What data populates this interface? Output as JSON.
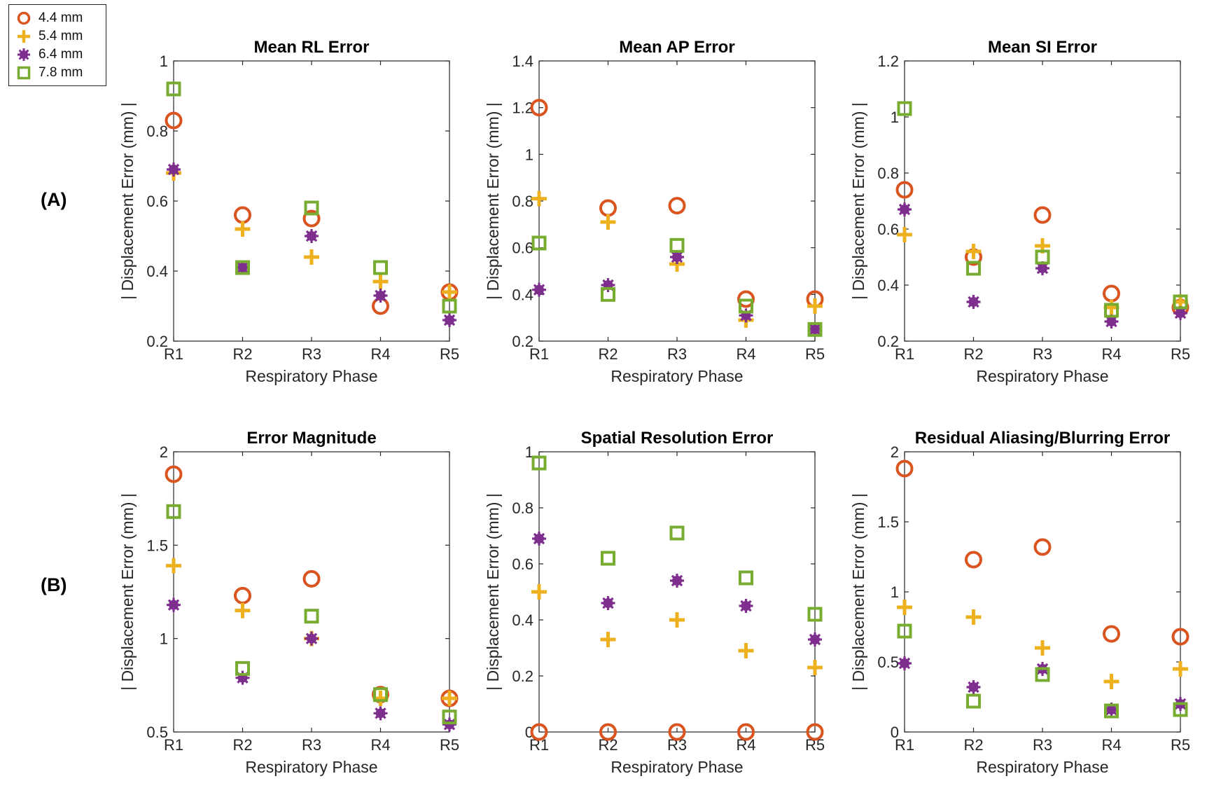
{
  "row_labels": [
    "(A)",
    "(B)"
  ],
  "legend": [
    {
      "label": "4.4 mm",
      "marker": "circle",
      "color": "#D9541E"
    },
    {
      "label": "5.4 mm",
      "marker": "plus",
      "color": "#EDB120"
    },
    {
      "label": "6.4 mm",
      "marker": "star",
      "color": "#7E2F8E"
    },
    {
      "label": "7.8 mm",
      "marker": "square",
      "color": "#77AC30"
    }
  ],
  "chart_data": [
    {
      "type": "scatter",
      "title": "Mean RL Error",
      "xlabel": "Respiratory Phase",
      "ylabel": "| Displacement Error (mm) |",
      "categories": [
        "R1",
        "R2",
        "R3",
        "R4",
        "R5"
      ],
      "ylim": [
        0.2,
        1
      ],
      "yticks": [
        0.2,
        0.4,
        0.6,
        0.8,
        1
      ],
      "ytick_labels": [
        "0.2",
        "0.4",
        "0.6",
        "0.8",
        "1"
      ],
      "series": [
        {
          "name": "4.4 mm",
          "values": [
            0.83,
            0.56,
            0.55,
            0.3,
            0.34
          ]
        },
        {
          "name": "5.4 mm",
          "values": [
            0.68,
            0.52,
            0.44,
            0.37,
            0.34
          ]
        },
        {
          "name": "6.4 mm",
          "values": [
            0.69,
            0.41,
            0.5,
            0.33,
            0.26
          ]
        },
        {
          "name": "7.8 mm",
          "values": [
            0.92,
            0.41,
            0.58,
            0.41,
            0.3
          ]
        }
      ]
    },
    {
      "type": "scatter",
      "title": "Mean AP Error",
      "xlabel": "Respiratory Phase",
      "ylabel": "| Displacement Error (mm) |",
      "categories": [
        "R1",
        "R2",
        "R3",
        "R4",
        "R5"
      ],
      "ylim": [
        0.2,
        1.4
      ],
      "yticks": [
        0.2,
        0.4,
        0.6,
        0.8,
        1.0,
        1.2,
        1.4
      ],
      "ytick_labels": [
        "0.2",
        "0.4",
        "0.6",
        "0.8",
        "1",
        "1.2",
        "1.4"
      ],
      "series": [
        {
          "name": "4.4 mm",
          "values": [
            1.2,
            0.77,
            0.78,
            0.38,
            0.38
          ]
        },
        {
          "name": "5.4 mm",
          "values": [
            0.81,
            0.71,
            0.53,
            0.29,
            0.35
          ]
        },
        {
          "name": "6.4 mm",
          "values": [
            0.42,
            0.44,
            0.56,
            0.31,
            0.25
          ]
        },
        {
          "name": "7.8 mm",
          "values": [
            0.62,
            0.4,
            0.61,
            0.35,
            0.25
          ]
        }
      ]
    },
    {
      "type": "scatter",
      "title": "Mean SI Error",
      "xlabel": "Respiratory Phase",
      "ylabel": "| Displacement Error (mm) |",
      "categories": [
        "R1",
        "R2",
        "R3",
        "R4",
        "R5"
      ],
      "ylim": [
        0.2,
        1.2
      ],
      "yticks": [
        0.2,
        0.4,
        0.6,
        0.8,
        1.0,
        1.2
      ],
      "ytick_labels": [
        "0.2",
        "0.4",
        "0.6",
        "0.8",
        "1",
        "1.2"
      ],
      "series": [
        {
          "name": "4.4 mm",
          "values": [
            0.74,
            0.5,
            0.65,
            0.37,
            0.32
          ]
        },
        {
          "name": "5.4 mm",
          "values": [
            0.58,
            0.52,
            0.54,
            0.32,
            0.34
          ]
        },
        {
          "name": "6.4 mm",
          "values": [
            0.67,
            0.34,
            0.46,
            0.27,
            0.3
          ]
        },
        {
          "name": "7.8 mm",
          "values": [
            1.03,
            0.46,
            0.5,
            0.31,
            0.34
          ]
        }
      ]
    },
    {
      "type": "scatter",
      "title": "Error Magnitude",
      "xlabel": "Respiratory Phase",
      "ylabel": "| Displacement Error (mm) |",
      "categories": [
        "R1",
        "R2",
        "R3",
        "R4",
        "R5"
      ],
      "ylim": [
        0.5,
        2
      ],
      "yticks": [
        0.5,
        1.0,
        1.5,
        2.0
      ],
      "ytick_labels": [
        "0.5",
        "1",
        "1.5",
        "2"
      ],
      "series": [
        {
          "name": "4.4 mm",
          "values": [
            1.88,
            1.23,
            1.32,
            0.7,
            0.68
          ]
        },
        {
          "name": "5.4 mm",
          "values": [
            1.39,
            1.15,
            1.0,
            0.68,
            0.68
          ]
        },
        {
          "name": "6.4 mm",
          "values": [
            1.18,
            0.79,
            1.0,
            0.6,
            0.54
          ]
        },
        {
          "name": "7.8 mm",
          "values": [
            1.68,
            0.84,
            1.12,
            0.7,
            0.58
          ]
        }
      ]
    },
    {
      "type": "scatter",
      "title": "Spatial Resolution Error",
      "xlabel": "Respiratory Phase",
      "ylabel": "| Displacement Error (mm) |",
      "categories": [
        "R1",
        "R2",
        "R3",
        "R4",
        "R5"
      ],
      "ylim": [
        0,
        1
      ],
      "yticks": [
        0,
        0.2,
        0.4,
        0.6,
        0.8,
        1.0
      ],
      "ytick_labels": [
        "0",
        "0.2",
        "0.4",
        "0.6",
        "0.8",
        "1"
      ],
      "series": [
        {
          "name": "4.4 mm",
          "values": [
            0.0,
            0.0,
            0.0,
            0.0,
            0.0
          ]
        },
        {
          "name": "5.4 mm",
          "values": [
            0.5,
            0.33,
            0.4,
            0.29,
            0.23
          ]
        },
        {
          "name": "6.4 mm",
          "values": [
            0.69,
            0.46,
            0.54,
            0.45,
            0.33
          ]
        },
        {
          "name": "7.8 mm",
          "values": [
            0.96,
            0.62,
            0.71,
            0.55,
            0.42
          ]
        }
      ]
    },
    {
      "type": "scatter",
      "title": "Residual Aliasing/Blurring Error",
      "xlabel": "Respiratory Phase",
      "ylabel": "| Displacement Error (mm) |",
      "categories": [
        "R1",
        "R2",
        "R3",
        "R4",
        "R5"
      ],
      "ylim": [
        0,
        2
      ],
      "yticks": [
        0,
        0.5,
        1.0,
        1.5,
        2.0
      ],
      "ytick_labels": [
        "0",
        "0.5",
        "1",
        "1.5",
        "2"
      ],
      "series": [
        {
          "name": "4.4 mm",
          "values": [
            1.88,
            1.23,
            1.32,
            0.7,
            0.68
          ]
        },
        {
          "name": "5.4 mm",
          "values": [
            0.89,
            0.82,
            0.6,
            0.36,
            0.45
          ]
        },
        {
          "name": "6.4 mm",
          "values": [
            0.49,
            0.32,
            0.45,
            0.16,
            0.2
          ]
        },
        {
          "name": "7.8 mm",
          "values": [
            0.72,
            0.22,
            0.41,
            0.15,
            0.16
          ]
        }
      ]
    }
  ]
}
